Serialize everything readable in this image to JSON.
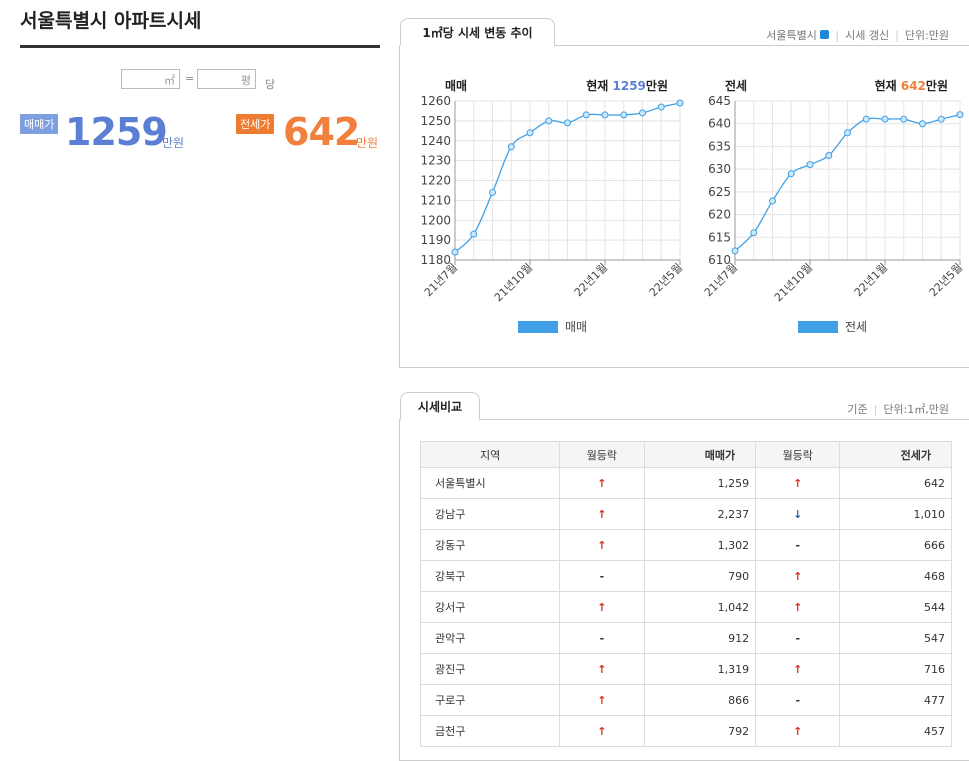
{
  "header": {
    "title": "서울특별시 아파트시세"
  },
  "converter": {
    "unit_area": "㎡",
    "equals": "=",
    "unit_pyeong": "평",
    "suffix": "당"
  },
  "summary": {
    "sale": {
      "badge": "매매가",
      "value": "1259",
      "unit": "만원",
      "color": "#5b7fd4"
    },
    "lease": {
      "badge": "전세가",
      "value": "642",
      "unit": "만원",
      "color": "#f0803c"
    }
  },
  "trend_panel": {
    "tab": "1㎡당 시세 변동 추이",
    "region": "서울특별시",
    "refresh": "시세 갱신",
    "unit": "단위:만원",
    "charts": [
      {
        "type": "line",
        "title": "매매",
        "current_label": "현재",
        "current_value": "1259",
        "current_unit": "만원",
        "current_color": "#5b7fd4",
        "categories": [
          "21년7월",
          null,
          null,
          null,
          "21년10월",
          null,
          null,
          null,
          "22년1월",
          null,
          null,
          null,
          "22년5월"
        ],
        "series": [
          {
            "name": "매매",
            "color": "#3fa0e8",
            "values": [
              1184,
              1193,
              1214,
              1237,
              1244,
              1250,
              1249,
              1253,
              1253,
              1253,
              1254,
              1257,
              1259
            ]
          }
        ],
        "ylim": [
          1180,
          1260
        ],
        "yticks": [
          1180,
          1190,
          1200,
          1210,
          1220,
          1230,
          1240,
          1250,
          1260
        ],
        "grid": true
      },
      {
        "type": "line",
        "title": "전세",
        "current_label": "현재",
        "current_value": "642",
        "current_unit": "만원",
        "current_color": "#f0803c",
        "categories": [
          "21년7월",
          null,
          null,
          null,
          "21년10월",
          null,
          null,
          null,
          "22년1월",
          null,
          null,
          null,
          "22년5월"
        ],
        "series": [
          {
            "name": "전세",
            "color": "#3fa0e8",
            "values": [
              612,
              616,
              623,
              629,
              631,
              633,
              638,
              641,
              641,
              641,
              640,
              641,
              642
            ]
          }
        ],
        "ylim": [
          610,
          645
        ],
        "yticks": [
          610,
          615,
          620,
          625,
          630,
          635,
          640,
          645
        ],
        "grid": true
      }
    ]
  },
  "compare_panel": {
    "tab": "시세비교",
    "basis": "기준",
    "unit": "단위:1㎡,만원",
    "table": {
      "columns": [
        "지역",
        "월등락",
        "매매가",
        "월등락",
        "전세가"
      ],
      "rows": [
        [
          "서울특별시",
          {
            "symbol": "↑",
            "color": "#d7301f"
          },
          "1,259",
          {
            "symbol": "↑",
            "color": "#d7301f"
          },
          "642"
        ],
        [
          "강남구",
          {
            "symbol": "↑",
            "color": "#d7301f"
          },
          "2,237",
          {
            "symbol": "↓",
            "color": "#2f5fa8"
          },
          "1,010"
        ],
        [
          "강동구",
          {
            "symbol": "↑",
            "color": "#d7301f"
          },
          "1,302",
          {
            "symbol": "-",
            "color": "#333333"
          },
          "666"
        ],
        [
          "강북구",
          {
            "symbol": "-",
            "color": "#333333"
          },
          "790",
          {
            "symbol": "↑",
            "color": "#d7301f"
          },
          "468"
        ],
        [
          "강서구",
          {
            "symbol": "↑",
            "color": "#d7301f"
          },
          "1,042",
          {
            "symbol": "↑",
            "color": "#d7301f"
          },
          "544"
        ],
        [
          "관악구",
          {
            "symbol": "-",
            "color": "#333333"
          },
          "912",
          {
            "symbol": "-",
            "color": "#333333"
          },
          "547"
        ],
        [
          "광진구",
          {
            "symbol": "↑",
            "color": "#d7301f"
          },
          "1,319",
          {
            "symbol": "↑",
            "color": "#d7301f"
          },
          "716"
        ],
        [
          "구로구",
          {
            "symbol": "↑",
            "color": "#d7301f"
          },
          "866",
          {
            "symbol": "-",
            "color": "#333333"
          },
          "477"
        ],
        [
          "금천구",
          {
            "symbol": "↑",
            "color": "#d7301f"
          },
          "792",
          {
            "symbol": "↑",
            "color": "#d7301f"
          },
          "457"
        ]
      ]
    }
  }
}
